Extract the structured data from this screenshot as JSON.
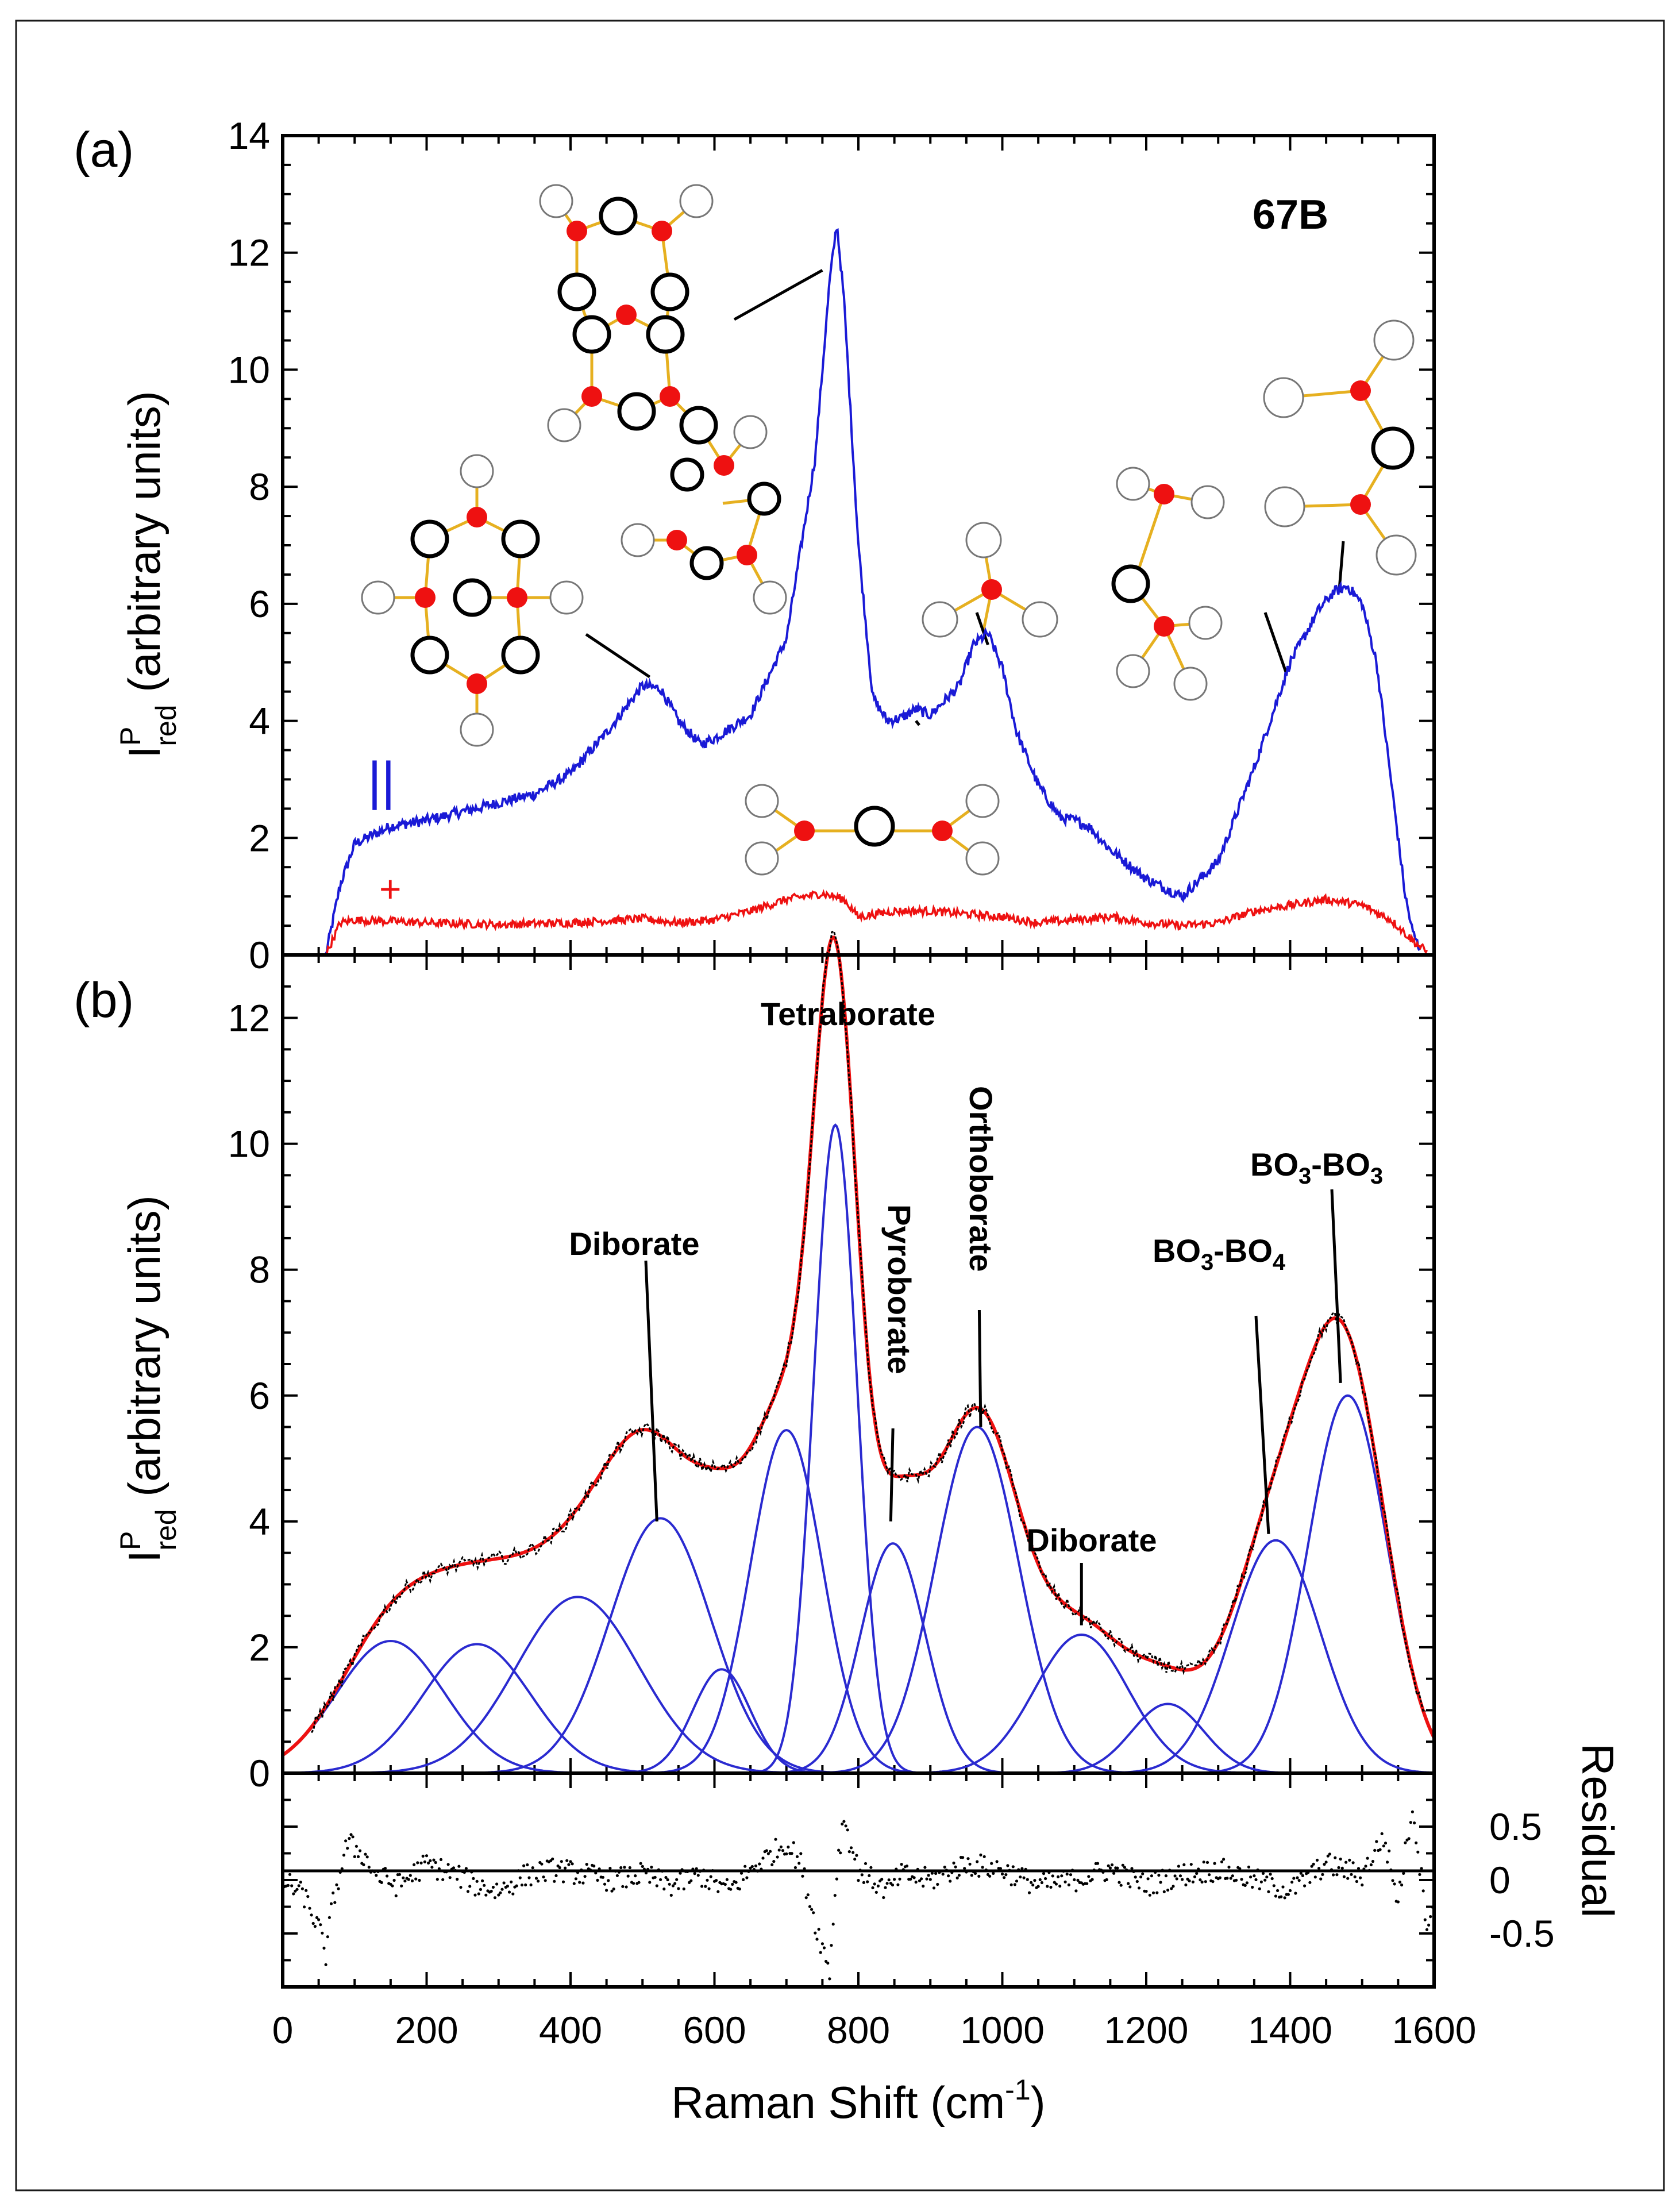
{
  "figure": {
    "panel_a_label": "(a)",
    "panel_b_label": "(b)",
    "sample_label": "67B",
    "parallel_marker": "||",
    "perp_marker": "+",
    "x_axis_title": "Raman Shift (cm",
    "x_axis_unit_sup": "-1",
    "x_axis_title_close": ")",
    "y_axis_title_I": "I",
    "y_axis_title_sup": "P",
    "y_axis_title_sub": "red",
    "y_axis_title_rest": " (arbitrary units)",
    "residual_title": "Residual",
    "annotations": {
      "tetraborate": "Tetraborate",
      "diborate_1": "Diborate",
      "pyroborate": "Pyroborate",
      "orthoborate": "Orthoborate",
      "diborate_2": "Diborate",
      "bo3_bo4_main": "BO",
      "bo3_bo4_sub": "3",
      "bo3_bo4_tail": "-BO",
      "bo3_bo4_sub2": "4",
      "bo3_bo3_main": "BO",
      "bo3_bo3_sub": "3",
      "bo3_bo3_tail": "-BO",
      "bo3_bo3_sub2": "3"
    }
  },
  "colors": {
    "parallel": "#1a1ad6",
    "perpendicular": "#ee1111",
    "fit_total": "#ee1111",
    "component": "#2a2ad0",
    "data": "#000000"
  },
  "chart_data": [
    {
      "panel": "(a)",
      "type": "line",
      "xlabel": "Raman Shift (cm-1)",
      "ylabel": "IPred (arbitrary units)",
      "xlim": [
        0,
        1600
      ],
      "ylim": [
        0,
        14
      ],
      "x_ticks": [
        0,
        200,
        400,
        600,
        800,
        1000,
        1200,
        1400,
        1600
      ],
      "y_ticks": [
        0,
        2,
        4,
        6,
        8,
        10,
        12,
        14
      ],
      "series": [
        {
          "name": "||",
          "color": "#1a1ad6",
          "x": [
            60,
            80,
            100,
            150,
            200,
            250,
            300,
            350,
            400,
            450,
            500,
            525,
            550,
            580,
            600,
            650,
            700,
            740,
            760,
            770,
            780,
            800,
            820,
            840,
            860,
            880,
            900,
            940,
            960,
            980,
            1000,
            1020,
            1050,
            1080,
            1100,
            1120,
            1150,
            1200,
            1250,
            1300,
            1350,
            1400,
            1440,
            1460,
            1480,
            1500,
            1520,
            1540,
            1550,
            1560,
            1570,
            1580
          ],
          "y": [
            0,
            1.2,
            1.9,
            2.2,
            2.3,
            2.45,
            2.6,
            2.75,
            3.1,
            3.8,
            4.6,
            4.55,
            4.0,
            3.6,
            3.7,
            4.1,
            5.4,
            8.5,
            11.5,
            12.5,
            11.2,
            7.0,
            4.4,
            4.0,
            4.05,
            4.2,
            4.1,
            4.6,
            5.3,
            5.5,
            4.9,
            3.8,
            2.9,
            2.35,
            2.3,
            2.2,
            1.8,
            1.3,
            1.0,
            1.6,
            3.2,
            5.0,
            5.9,
            6.2,
            6.3,
            6.0,
            5.0,
            3.0,
            2.0,
            1.0,
            0.4,
            0.1
          ]
        },
        {
          "name": "+",
          "color": "#ee1111",
          "x": [
            60,
            80,
            100,
            200,
            300,
            400,
            500,
            550,
            600,
            650,
            700,
            750,
            780,
            800,
            850,
            900,
            950,
            1000,
            1050,
            1100,
            1150,
            1200,
            1250,
            1300,
            1350,
            1400,
            1450,
            1500,
            1540,
            1570,
            1590
          ],
          "y": [
            0,
            0.55,
            0.6,
            0.55,
            0.52,
            0.55,
            0.62,
            0.55,
            0.6,
            0.75,
            0.95,
            1.05,
            0.95,
            0.65,
            0.75,
            0.75,
            0.7,
            0.65,
            0.55,
            0.6,
            0.65,
            0.55,
            0.5,
            0.55,
            0.75,
            0.85,
            0.95,
            0.85,
            0.6,
            0.25,
            0.05
          ]
        }
      ]
    },
    {
      "panel": "(b)",
      "type": "line",
      "xlabel": "Raman Shift (cm-1)",
      "ylabel": "IPred (arbitrary units)",
      "xlim": [
        0,
        1600
      ],
      "ylim": [
        0,
        13
      ],
      "x_ticks": [
        0,
        200,
        400,
        600,
        800,
        1000,
        1200,
        1400,
        1600
      ],
      "y_ticks": [
        0,
        2,
        4,
        6,
        8,
        10,
        12
      ],
      "components": [
        {
          "center": 150,
          "height": 2.1,
          "width": 75
        },
        {
          "center": 270,
          "height": 2.05,
          "width": 75
        },
        {
          "center": 410,
          "height": 2.8,
          "width": 85
        },
        {
          "center": 525,
          "height": 4.05,
          "width": 70
        },
        {
          "center": 610,
          "height": 1.65,
          "width": 40
        },
        {
          "center": 700,
          "height": 5.45,
          "width": 50
        },
        {
          "center": 768,
          "height": 10.3,
          "width": 30
        },
        {
          "center": 848,
          "height": 3.65,
          "width": 45
        },
        {
          "center": 965,
          "height": 5.5,
          "width": 58
        },
        {
          "center": 1110,
          "height": 2.2,
          "width": 65
        },
        {
          "center": 1230,
          "height": 1.1,
          "width": 50
        },
        {
          "center": 1380,
          "height": 3.7,
          "width": 62
        },
        {
          "center": 1480,
          "height": 6.0,
          "width": 55
        }
      ],
      "annotations": [
        {
          "text": "Tetraborate",
          "x": 770,
          "y": 12.5
        },
        {
          "text": "Diborate",
          "x": 520,
          "y": 4.0
        },
        {
          "text": "Pyroborate",
          "x": 845,
          "y": 4.0
        },
        {
          "text": "Orthoborate",
          "x": 970,
          "y": 5.5
        },
        {
          "text": "Diborate",
          "x": 1110,
          "y": 2.4
        },
        {
          "text": "BO3-BO4",
          "x": 1370,
          "y": 3.8
        },
        {
          "text": "BO3-BO3",
          "x": 1470,
          "y": 6.2
        }
      ]
    },
    {
      "panel": "residual",
      "type": "scatter",
      "ylabel": "Residual",
      "xlim": [
        0,
        1600
      ],
      "ylim": [
        -1.0,
        1.0
      ],
      "y_ticks": [
        -0.5,
        0,
        0.5
      ],
      "y_tick_labels": [
        "-0.5",
        "0",
        "0.5"
      ],
      "x": [
        0,
        30,
        50,
        60,
        70,
        90,
        110,
        130,
        160,
        200,
        240,
        270,
        300,
        340,
        380,
        420,
        460,
        500,
        540,
        580,
        620,
        660,
        700,
        720,
        740,
        760,
        770,
        780,
        790,
        800,
        820,
        840,
        860,
        900,
        950,
        1000,
        1050,
        1100,
        1150,
        1200,
        1250,
        1300,
        1350,
        1400,
        1450,
        1500,
        1530,
        1550,
        1570,
        1590,
        1600
      ],
      "y": [
        0,
        -0.15,
        -0.45,
        -0.7,
        -0.2,
        0.35,
        0.25,
        0.05,
        -0.05,
        0.15,
        0.05,
        -0.05,
        -0.1,
        0.05,
        0.1,
        0.05,
        0.0,
        0.05,
        -0.05,
        0.05,
        -0.1,
        0.15,
        0.35,
        0.15,
        -0.4,
        -0.85,
        0.1,
        0.6,
        0.3,
        0.1,
        0.0,
        -0.1,
        0.05,
        0.0,
        0.15,
        0.1,
        -0.05,
        0.0,
        0.1,
        -0.05,
        0.05,
        0.1,
        0.0,
        -0.1,
        0.15,
        0.05,
        0.4,
        -0.2,
        0.7,
        -0.4,
        -0.2
      ]
    }
  ]
}
